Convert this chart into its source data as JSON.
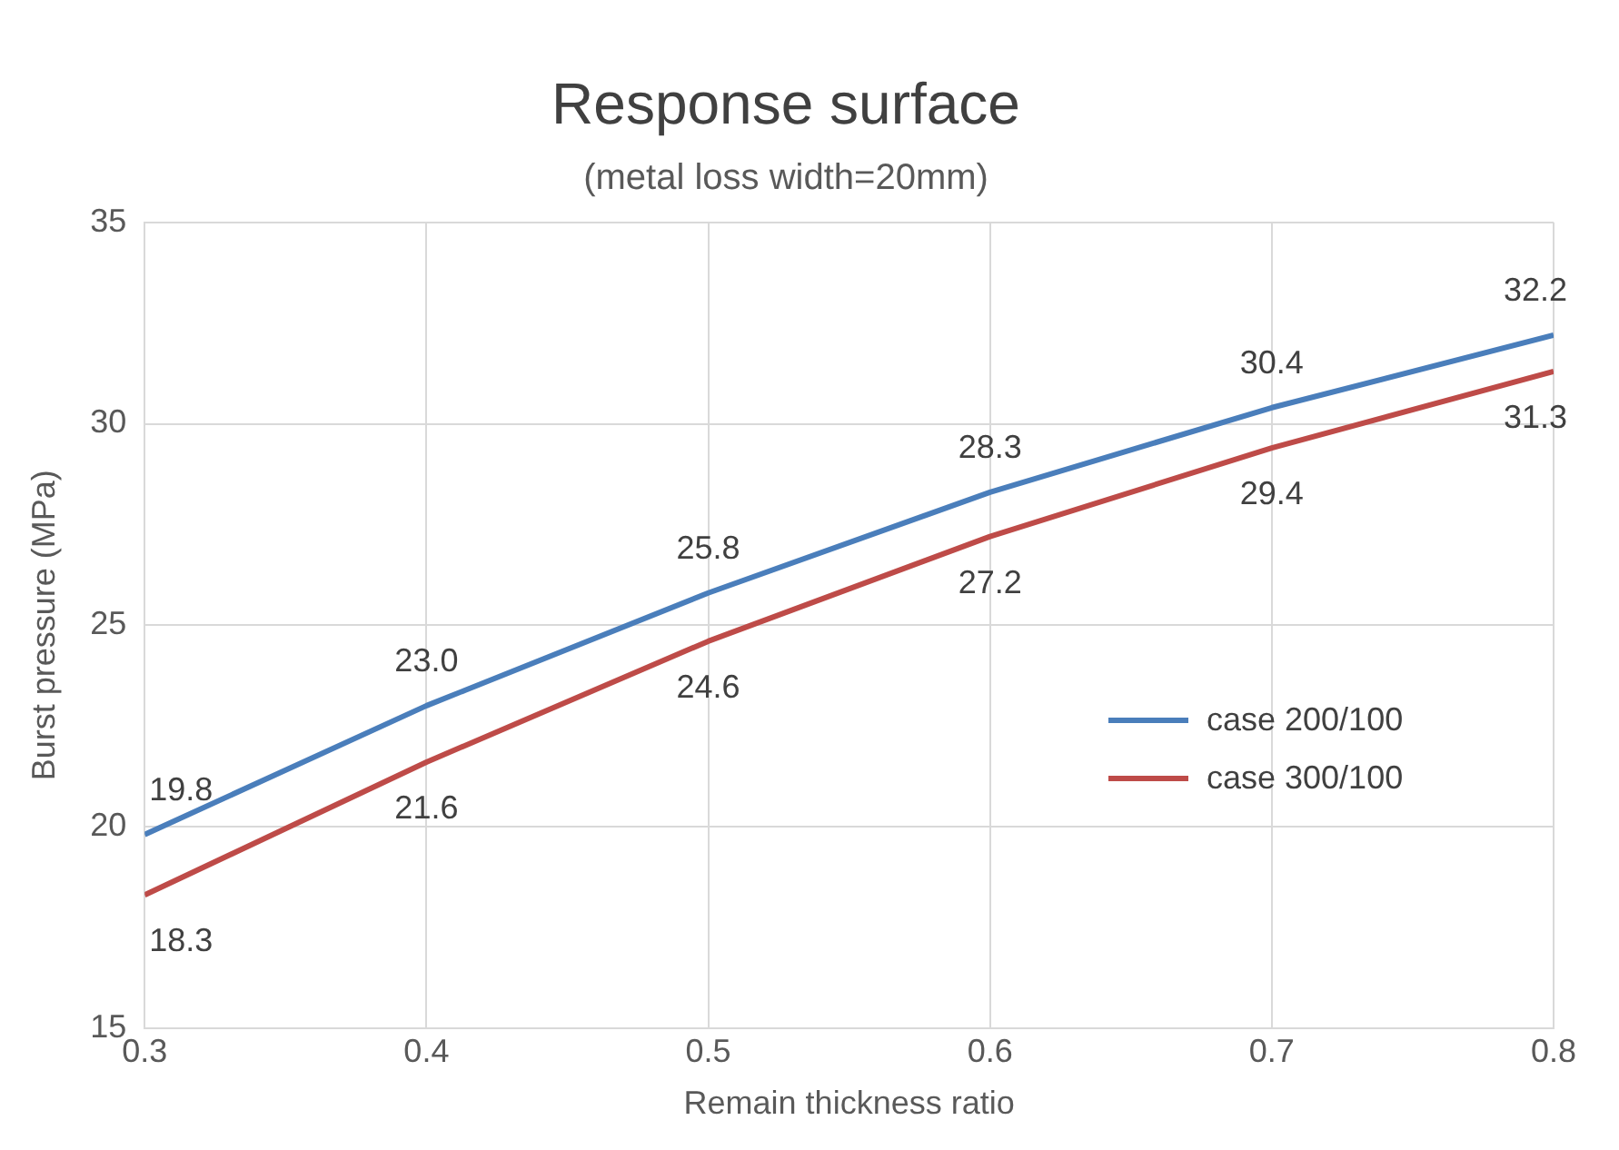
{
  "chart_data": {
    "type": "line",
    "title": "Response surface",
    "subtitle": "(metal loss width=20mm)",
    "xlabel": "Remain thickness ratio",
    "ylabel": "Burst pressure (MPa)",
    "x": [
      0.3,
      0.4,
      0.5,
      0.6,
      0.7,
      0.8
    ],
    "series": [
      {
        "name": "case 200/100",
        "color": "#4a7ebb",
        "values": [
          19.8,
          23.0,
          25.8,
          28.3,
          30.4,
          32.2
        ],
        "value_labels": [
          "19.8",
          "23.0",
          "25.8",
          "28.3",
          "30.4",
          "32.2"
        ]
      },
      {
        "name": "case 300/100",
        "color": "#be4b48",
        "values": [
          18.3,
          21.6,
          24.6,
          27.2,
          29.4,
          31.3
        ],
        "value_labels": [
          "18.3",
          "21.6",
          "24.6",
          "27.2",
          "29.4",
          "31.3"
        ]
      }
    ],
    "xlim": [
      0.3,
      0.8
    ],
    "xticks": [
      0.3,
      0.4,
      0.5,
      0.6,
      0.7,
      0.8
    ],
    "ylim": [
      15,
      35
    ],
    "yticks": [
      15,
      20,
      25,
      30,
      35
    ],
    "grid": true,
    "legend": "right",
    "marker": "none",
    "line_style": "solid"
  }
}
